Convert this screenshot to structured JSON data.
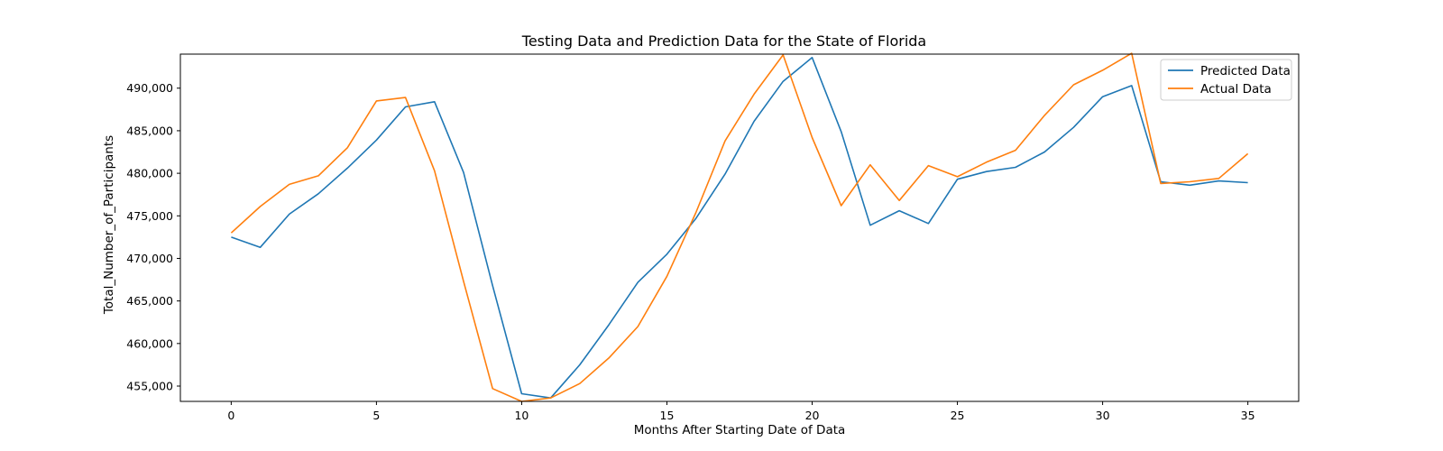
{
  "chart_data": {
    "type": "line",
    "title": "Testing Data and Prediction Data for the State of Florida",
    "xlabel": "Months After Starting Date of Data",
    "ylabel": "Total_Number_of_Participants",
    "xlim": [
      -1.75,
      36.75
    ],
    "ylim": [
      453200,
      494000
    ],
    "x_ticks": [
      0,
      5,
      10,
      15,
      20,
      25,
      30,
      35
    ],
    "y_ticks": [
      455000,
      460000,
      465000,
      470000,
      475000,
      480000,
      485000,
      490000
    ],
    "y_tick_labels": [
      "455,000",
      "460,000",
      "465,000",
      "470,000",
      "475,000",
      "480,000",
      "485,000",
      "490,000"
    ],
    "grid": false,
    "legend_position": "top-right",
    "x": [
      0,
      1,
      2,
      3,
      4,
      5,
      6,
      7,
      8,
      9,
      10,
      11,
      12,
      13,
      14,
      15,
      16,
      17,
      18,
      19,
      20,
      21,
      22,
      23,
      24,
      25,
      26,
      27,
      28,
      29,
      30,
      31,
      32,
      33,
      34,
      35
    ],
    "series": [
      {
        "name": "Predicted Data",
        "color": "#1f77b4",
        "values": [
          472500,
          471300,
          475200,
          477600,
          480600,
          483900,
          487800,
          488400,
          480100,
          466800,
          454100,
          453600,
          457500,
          462200,
          467200,
          470500,
          474700,
          479900,
          486100,
          490800,
          493600,
          484900,
          473900,
          475600,
          474100,
          479300,
          480200,
          480700,
          482500,
          485400,
          489000,
          490300,
          479000,
          478600,
          479100,
          478900
        ]
      },
      {
        "name": "Actual Data",
        "color": "#ff7f0e",
        "values": [
          473000,
          476100,
          478700,
          479700,
          483000,
          488500,
          488900,
          480300,
          467300,
          454700,
          453200,
          453600,
          455300,
          458300,
          462000,
          467900,
          475400,
          483800,
          489300,
          493900,
          484200,
          476200,
          481000,
          476800,
          480900,
          479600,
          481300,
          482700,
          486800,
          490400,
          492100,
          494100,
          478800,
          479000,
          479400,
          482300
        ]
      }
    ]
  },
  "colors": {
    "background": "#ffffff",
    "axes": "#000000"
  }
}
